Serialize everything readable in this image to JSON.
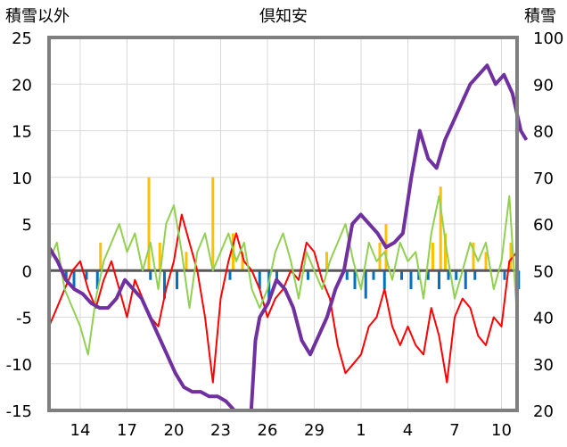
{
  "chart_data": {
    "type": "line",
    "title": "倶知安",
    "left_axis_label": "積雪以外",
    "right_axis_label": "積雪",
    "left_ylim": [
      -15,
      25
    ],
    "right_ylim": [
      20,
      100
    ],
    "left_ticks": [
      "25",
      "20",
      "15",
      "10",
      "5",
      "0",
      "-5",
      "-10",
      "-15"
    ],
    "right_ticks": [
      "100",
      "90",
      "80",
      "70",
      "60",
      "50",
      "40",
      "30",
      "20"
    ],
    "x_range": [
      0,
      30
    ],
    "x_ticks": [
      {
        "x": 2,
        "label": "14"
      },
      {
        "x": 5,
        "label": "17"
      },
      {
        "x": 8,
        "label": "20"
      },
      {
        "x": 11,
        "label": "23"
      },
      {
        "x": 14,
        "label": "26"
      },
      {
        "x": 17,
        "label": "29"
      },
      {
        "x": 20,
        "label": "1"
      },
      {
        "x": 23,
        "label": "4"
      },
      {
        "x": 26,
        "label": "7"
      },
      {
        "x": 29,
        "label": "10"
      }
    ],
    "grid": true,
    "colors": {
      "red": "#ff0000",
      "green": "#92d050",
      "purple": "#7030a0",
      "orange": "#ffc000",
      "blue": "#0070c0",
      "zero_line": "#595959",
      "grid": "#d9d9d9",
      "frame": "#7f7f7f"
    },
    "red_series": {
      "axis": "left",
      "points": [
        [
          0,
          -6
        ],
        [
          0.5,
          -4
        ],
        [
          1,
          -2
        ],
        [
          1.5,
          0
        ],
        [
          2,
          1
        ],
        [
          2.5,
          -2
        ],
        [
          3,
          -4
        ],
        [
          3.5,
          -1
        ],
        [
          4,
          1
        ],
        [
          4.5,
          -2
        ],
        [
          5,
          -5
        ],
        [
          5.5,
          -1
        ],
        [
          6,
          -3
        ],
        [
          6.5,
          -5
        ],
        [
          7,
          -6
        ],
        [
          7.5,
          -2
        ],
        [
          8,
          1
        ],
        [
          8.5,
          6
        ],
        [
          9,
          3
        ],
        [
          9.5,
          0
        ],
        [
          10,
          -5
        ],
        [
          10.5,
          -12
        ],
        [
          11,
          -3
        ],
        [
          11.5,
          1
        ],
        [
          12,
          4
        ],
        [
          12.5,
          1
        ],
        [
          13,
          0
        ],
        [
          13.5,
          -2
        ],
        [
          14,
          -5
        ],
        [
          14.5,
          -3
        ],
        [
          15,
          -2
        ],
        [
          15.5,
          0
        ],
        [
          16,
          -1
        ],
        [
          16.5,
          3
        ],
        [
          17,
          2
        ],
        [
          17.5,
          -1
        ],
        [
          18,
          -3
        ],
        [
          18.5,
          -8
        ],
        [
          19,
          -11
        ],
        [
          19.5,
          -10
        ],
        [
          20,
          -9
        ],
        [
          20.5,
          -6
        ],
        [
          21,
          -5
        ],
        [
          21.5,
          -2
        ],
        [
          22,
          -6
        ],
        [
          22.5,
          -8
        ],
        [
          23,
          -6
        ],
        [
          23.5,
          -8
        ],
        [
          24,
          -9
        ],
        [
          24.5,
          -4
        ],
        [
          25,
          -7
        ],
        [
          25.5,
          -12
        ],
        [
          26,
          -5
        ],
        [
          26.5,
          -3
        ],
        [
          27,
          -4
        ],
        [
          27.5,
          -7
        ],
        [
          28,
          -8
        ],
        [
          28.5,
          -5
        ],
        [
          29,
          -6
        ],
        [
          29.5,
          1
        ],
        [
          30,
          2
        ]
      ]
    },
    "green_series": {
      "axis": "left",
      "points": [
        [
          0,
          1
        ],
        [
          0.5,
          3
        ],
        [
          1,
          -2
        ],
        [
          1.5,
          -4
        ],
        [
          2,
          -6
        ],
        [
          2.5,
          -9
        ],
        [
          3,
          -3
        ],
        [
          3.5,
          1
        ],
        [
          4,
          3
        ],
        [
          4.5,
          5
        ],
        [
          5,
          2
        ],
        [
          5.5,
          4
        ],
        [
          6,
          0
        ],
        [
          6.5,
          3
        ],
        [
          7,
          -2
        ],
        [
          7.5,
          5
        ],
        [
          8,
          7
        ],
        [
          8.5,
          2
        ],
        [
          9,
          -4
        ],
        [
          9.5,
          2
        ],
        [
          10,
          4
        ],
        [
          10.5,
          0
        ],
        [
          11,
          2
        ],
        [
          11.5,
          4
        ],
        [
          12,
          1
        ],
        [
          12.5,
          3
        ],
        [
          13,
          -2
        ],
        [
          13.5,
          -4
        ],
        [
          14,
          -2
        ],
        [
          14.5,
          2
        ],
        [
          15,
          4
        ],
        [
          15.5,
          1
        ],
        [
          16,
          -3
        ],
        [
          16.5,
          2
        ],
        [
          17,
          0
        ],
        [
          17.5,
          -2
        ],
        [
          18,
          1
        ],
        [
          18.5,
          3
        ],
        [
          19,
          5
        ],
        [
          19.5,
          1
        ],
        [
          20,
          -2
        ],
        [
          20.5,
          3
        ],
        [
          21,
          1
        ],
        [
          21.5,
          2
        ],
        [
          22,
          -1
        ],
        [
          22.5,
          3
        ],
        [
          23,
          1
        ],
        [
          23.5,
          2
        ],
        [
          24,
          -3
        ],
        [
          24.5,
          4
        ],
        [
          25,
          8
        ],
        [
          25.5,
          2
        ],
        [
          26,
          -3
        ],
        [
          26.5,
          0
        ],
        [
          27,
          3
        ],
        [
          27.5,
          1
        ],
        [
          28,
          3
        ],
        [
          28.5,
          -2
        ],
        [
          29,
          1
        ],
        [
          29.5,
          8
        ],
        [
          30,
          -5
        ]
      ]
    },
    "snow_depth_series": {
      "axis": "right",
      "points": [
        [
          0,
          55
        ],
        [
          0.6,
          52
        ],
        [
          1.2,
          48
        ],
        [
          1.8,
          46
        ],
        [
          2.4,
          45
        ],
        [
          3,
          43
        ],
        [
          3.6,
          42
        ],
        [
          4.2,
          42
        ],
        [
          4.8,
          44
        ],
        [
          5.4,
          48
        ],
        [
          6,
          46
        ],
        [
          6.6,
          44
        ],
        [
          7.2,
          40
        ],
        [
          7.8,
          36
        ],
        [
          8.4,
          32
        ],
        [
          9,
          28
        ],
        [
          9.6,
          25
        ],
        [
          10.2,
          24
        ],
        [
          10.8,
          24
        ],
        [
          11.4,
          23
        ],
        [
          12,
          23
        ],
        [
          12.6,
          22
        ],
        [
          13.2,
          20
        ],
        [
          13.8,
          20
        ],
        [
          14.4,
          20
        ],
        [
          14.7,
          35
        ],
        [
          15,
          40
        ],
        [
          15.6,
          43
        ],
        [
          16.2,
          48
        ],
        [
          16.8,
          46
        ],
        [
          17.4,
          42
        ],
        [
          18,
          35
        ],
        [
          18.6,
          32
        ],
        [
          19.2,
          36
        ],
        [
          19.8,
          40
        ],
        [
          20.4,
          46
        ],
        [
          21,
          50
        ],
        [
          21.6,
          60
        ],
        [
          22.2,
          62
        ],
        [
          22.8,
          60
        ],
        [
          23.4,
          58
        ],
        [
          24,
          55
        ],
        [
          24.6,
          56
        ],
        [
          25.2,
          58
        ],
        [
          25.8,
          70
        ],
        [
          26.4,
          80
        ],
        [
          27,
          74
        ],
        [
          27.6,
          72
        ],
        [
          28.2,
          78
        ],
        [
          28.8,
          82
        ],
        [
          29.4,
          86
        ],
        [
          30,
          90
        ],
        [
          30.6,
          92
        ],
        [
          31.2,
          94
        ],
        [
          31.8,
          90
        ],
        [
          32.4,
          92
        ],
        [
          33,
          88
        ],
        [
          33.6,
          80
        ],
        [
          34,
          78
        ]
      ],
      "x_scale": 0.9
    },
    "orange_bars": {
      "axis": "left",
      "values": [
        [
          3.3,
          3
        ],
        [
          6.4,
          10
        ],
        [
          7.1,
          3
        ],
        [
          8.8,
          2
        ],
        [
          10.5,
          10
        ],
        [
          11.8,
          4
        ],
        [
          12.4,
          2
        ],
        [
          17.8,
          2
        ],
        [
          21.2,
          3
        ],
        [
          21.6,
          5
        ],
        [
          24.6,
          3
        ],
        [
          25.1,
          9
        ],
        [
          25.4,
          4
        ],
        [
          27.2,
          3
        ],
        [
          28,
          2
        ],
        [
          29.6,
          3
        ]
      ]
    },
    "blue_bars": {
      "axis": "left",
      "values": [
        [
          1.1,
          -1
        ],
        [
          1.6,
          -2
        ],
        [
          2.4,
          -1
        ],
        [
          3.1,
          -2
        ],
        [
          6.5,
          -1
        ],
        [
          7.4,
          -3
        ],
        [
          8.2,
          -2
        ],
        [
          11.6,
          -1
        ],
        [
          13.5,
          -2
        ],
        [
          14.1,
          -3
        ],
        [
          14.6,
          -1
        ],
        [
          16.6,
          -1
        ],
        [
          19.1,
          -1
        ],
        [
          19.6,
          -2
        ],
        [
          20.3,
          -3
        ],
        [
          20.8,
          -1
        ],
        [
          21.5,
          -2
        ],
        [
          22.6,
          -1
        ],
        [
          23.2,
          -2
        ],
        [
          23.7,
          -1
        ],
        [
          24.3,
          -1
        ],
        [
          25,
          -2
        ],
        [
          25.6,
          -1
        ],
        [
          26.1,
          -1
        ],
        [
          26.7,
          -2
        ],
        [
          27.3,
          -1
        ],
        [
          29.2,
          -1
        ],
        [
          30.1,
          -2
        ]
      ]
    }
  }
}
